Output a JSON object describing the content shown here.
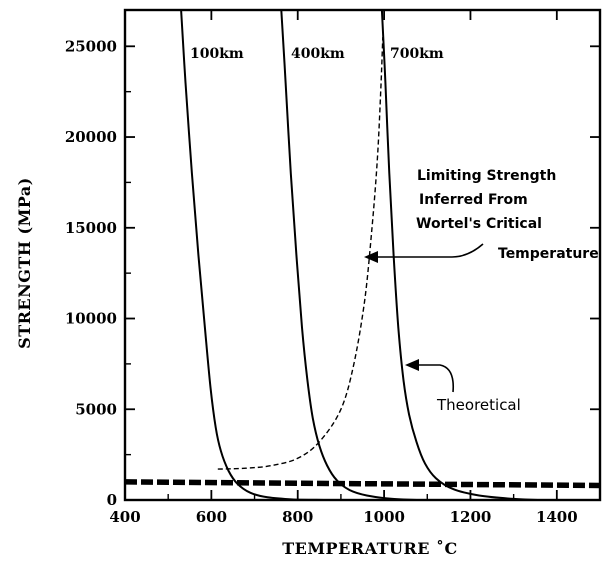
{
  "chart_data": {
    "type": "line",
    "title": "",
    "xlabel": "TEMPERATURE ˚C",
    "ylabel": "STRENGTH (MPa)",
    "xlim": [
      400,
      1500
    ],
    "ylim": [
      0,
      27000
    ],
    "xticks": [
      400,
      600,
      800,
      1000,
      1200,
      1400
    ],
    "yticks": [
      0,
      5000,
      10000,
      15000,
      20000,
      25000
    ],
    "grid": false,
    "series": [
      {
        "name": "100km",
        "style": "solid",
        "points": [
          [
            530,
            27000
          ],
          [
            540,
            23000
          ],
          [
            555,
            18000
          ],
          [
            570,
            13500
          ],
          [
            585,
            9500
          ],
          [
            598,
            6200
          ],
          [
            610,
            4000
          ],
          [
            622,
            2700
          ],
          [
            640,
            1600
          ],
          [
            660,
            900
          ],
          [
            690,
            400
          ],
          [
            730,
            150
          ],
          [
            790,
            30
          ],
          [
            860,
            0
          ]
        ]
      },
      {
        "name": "400km",
        "style": "solid",
        "points": [
          [
            762,
            27000
          ],
          [
            772,
            23000
          ],
          [
            784,
            18000
          ],
          [
            797,
            13500
          ],
          [
            810,
            9500
          ],
          [
            822,
            6700
          ],
          [
            835,
            4500
          ],
          [
            850,
            3000
          ],
          [
            868,
            1900
          ],
          [
            890,
            1100
          ],
          [
            920,
            550
          ],
          [
            960,
            250
          ],
          [
            1020,
            60
          ],
          [
            1080,
            0
          ]
        ]
      },
      {
        "name": "700km",
        "style": "solid",
        "points": [
          [
            995,
            27000
          ],
          [
            1003,
            23000
          ],
          [
            1012,
            18000
          ],
          [
            1022,
            13500
          ],
          [
            1033,
            9500
          ],
          [
            1045,
            6600
          ],
          [
            1058,
            4700
          ],
          [
            1075,
            3200
          ],
          [
            1095,
            2000
          ],
          [
            1120,
            1200
          ],
          [
            1160,
            600
          ],
          [
            1220,
            250
          ],
          [
            1300,
            60
          ],
          [
            1360,
            0
          ]
        ]
      },
      {
        "name": "Limiting Strength",
        "style": "dashed",
        "points": [
          [
            615,
            1700
          ],
          [
            680,
            1750
          ],
          [
            740,
            1900
          ],
          [
            800,
            2300
          ],
          [
            850,
            3200
          ],
          [
            900,
            5000
          ],
          [
            930,
            7500
          ],
          [
            955,
            11000
          ],
          [
            972,
            15000
          ],
          [
            985,
            19000
          ],
          [
            993,
            23000
          ],
          [
            997,
            25500
          ]
        ]
      },
      {
        "name": "Wortel threshold",
        "style": "thick-dashed",
        "points": [
          [
            400,
            1000
          ],
          [
            1500,
            800
          ]
        ]
      }
    ],
    "curve_labels": [
      "100km",
      "400km",
      "700km"
    ],
    "annotations": {
      "limiting_lines": [
        "Limiting Strength",
        "Inferred From",
        "Wortel's Critical",
        "Temperature"
      ],
      "theoretical": "Theoretical"
    }
  }
}
